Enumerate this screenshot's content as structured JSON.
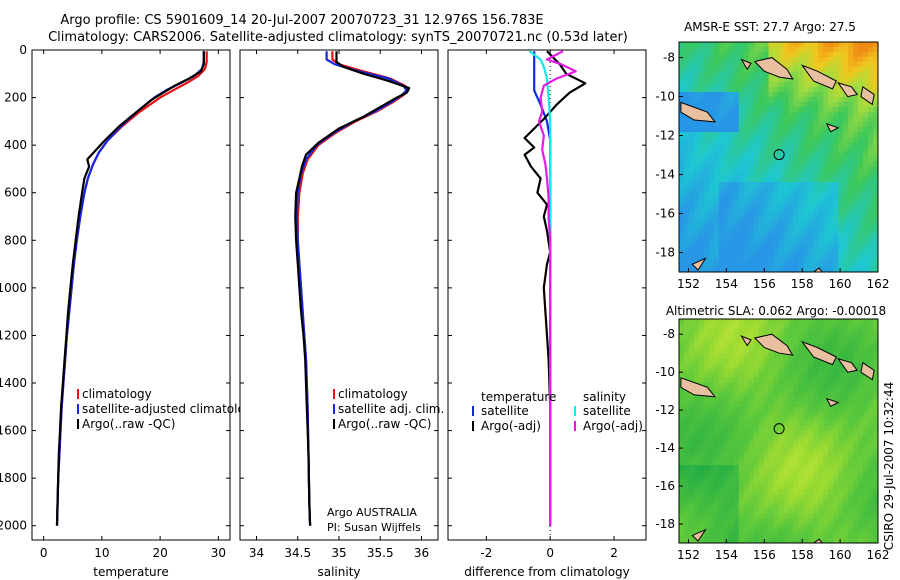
{
  "title_line1": "Argo profile: CS 5901609_14 20-Jul-2007 20070723_31 12.976S 156.783E",
  "title_line2": "Climatology: CARS2006. Satellite-adjusted climatology: synTS_20070721.nc (0.53d later)",
  "side_stamp": "CSIRO 29-Jul-2007 10:32:44",
  "credit_line1": "Argo AUSTRALIA",
  "credit_line2": "PI: Susan Wijffels",
  "colors": {
    "climatology": "#e81010",
    "satellite": "#1428e0",
    "argo": "#000000",
    "sat_cyan": "#19e6e6",
    "argo_magenta": "#e619e6"
  },
  "chart_data": [
    {
      "type": "line",
      "xlabel": "temperature",
      "xlim": [
        -2,
        32
      ],
      "ylim": [
        2060,
        0
      ],
      "xticks": [
        0,
        10,
        20,
        30
      ],
      "yticks": [
        0,
        200,
        400,
        600,
        800,
        1000,
        1200,
        1400,
        1600,
        1800,
        2000
      ],
      "legend": [
        "climatology",
        "satellite-adjusted climatology",
        "Argo(..raw -QC)"
      ],
      "series": [
        {
          "name": "climatology",
          "color": "#e81010",
          "points": [
            [
              28.0,
              5
            ],
            [
              28.0,
              50
            ],
            [
              27.7,
              80
            ],
            [
              26.5,
              110
            ],
            [
              24.5,
              140
            ],
            [
              22.2,
              170
            ],
            [
              20.0,
              200
            ],
            [
              16.5,
              260
            ],
            [
              13.5,
              320
            ],
            [
              11.0,
              380
            ],
            [
              9.5,
              430
            ],
            [
              8.5,
              480
            ],
            [
              7.6,
              540
            ],
            [
              7.0,
              600
            ],
            [
              6.3,
              700
            ],
            [
              5.7,
              800
            ],
            [
              5.2,
              900
            ],
            [
              4.8,
              1000
            ],
            [
              4.4,
              1100
            ],
            [
              4.0,
              1200
            ],
            [
              3.7,
              1300
            ],
            [
              3.4,
              1400
            ],
            [
              3.1,
              1500
            ],
            [
              2.9,
              1600
            ],
            [
              2.7,
              1700
            ],
            [
              2.5,
              1800
            ],
            [
              2.4,
              1900
            ],
            [
              2.3,
              1990
            ]
          ]
        },
        {
          "name": "satellite-adjusted climatology",
          "color": "#1428e0",
          "points": [
            [
              27.5,
              5
            ],
            [
              27.5,
              50
            ],
            [
              27.2,
              80
            ],
            [
              25.8,
              110
            ],
            [
              23.5,
              140
            ],
            [
              21.0,
              170
            ],
            [
              19.0,
              200
            ],
            [
              16.0,
              260
            ],
            [
              13.3,
              320
            ],
            [
              11.0,
              380
            ],
            [
              9.5,
              430
            ],
            [
              8.5,
              480
            ],
            [
              7.6,
              540
            ],
            [
              7.0,
              600
            ],
            [
              6.3,
              700
            ],
            [
              5.7,
              800
            ],
            [
              5.2,
              900
            ],
            [
              4.8,
              1000
            ],
            [
              4.4,
              1100
            ],
            [
              4.0,
              1200
            ],
            [
              3.7,
              1300
            ],
            [
              3.4,
              1400
            ],
            [
              3.1,
              1500
            ],
            [
              2.9,
              1600
            ],
            [
              2.7,
              1700
            ],
            [
              2.5,
              1800
            ],
            [
              2.4,
              1900
            ],
            [
              2.3,
              2000
            ]
          ]
        },
        {
          "name": "Argo(..raw -QC)",
          "color": "#000000",
          "points": [
            [
              27.5,
              5
            ],
            [
              27.5,
              60
            ],
            [
              27.0,
              90
            ],
            [
              25.0,
              120
            ],
            [
              22.5,
              150
            ],
            [
              20.5,
              180
            ],
            [
              18.5,
              210
            ],
            [
              16.0,
              260
            ],
            [
              13.0,
              320
            ],
            [
              10.5,
              380
            ],
            [
              9.0,
              420
            ],
            [
              7.5,
              460
            ],
            [
              7.8,
              490
            ],
            [
              7.0,
              540
            ],
            [
              6.6,
              600
            ],
            [
              6.0,
              700
            ],
            [
              5.5,
              800
            ],
            [
              5.0,
              900
            ],
            [
              4.6,
              1000
            ],
            [
              4.2,
              1100
            ],
            [
              3.9,
              1200
            ],
            [
              3.6,
              1300
            ],
            [
              3.3,
              1400
            ],
            [
              3.0,
              1500
            ],
            [
              2.8,
              1600
            ],
            [
              2.6,
              1700
            ],
            [
              2.5,
              1800
            ],
            [
              2.4,
              1900
            ],
            [
              2.3,
              2000
            ]
          ]
        }
      ]
    },
    {
      "type": "line",
      "xlabel": "salinity",
      "xlim": [
        33.8,
        36.2
      ],
      "ylim": [
        2060,
        0
      ],
      "xticks": [
        34,
        34.5,
        35,
        35.5,
        36
      ],
      "legend": [
        "climatology",
        "satellite adj. clim.",
        "Argo(..raw -QC)"
      ],
      "series": [
        {
          "name": "climatology",
          "color": "#e81010",
          "points": [
            [
              34.92,
              5
            ],
            [
              34.92,
              40
            ],
            [
              35.0,
              60
            ],
            [
              35.3,
              90
            ],
            [
              35.62,
              120
            ],
            [
              35.8,
              150
            ],
            [
              35.84,
              170
            ],
            [
              35.78,
              190
            ],
            [
              35.65,
              220
            ],
            [
              35.45,
              260
            ],
            [
              35.2,
              300
            ],
            [
              34.95,
              350
            ],
            [
              34.75,
              400
            ],
            [
              34.62,
              460
            ],
            [
              34.56,
              520
            ],
            [
              34.52,
              600
            ],
            [
              34.5,
              700
            ],
            [
              34.5,
              800
            ],
            [
              34.52,
              900
            ],
            [
              34.54,
              1000
            ],
            [
              34.56,
              1100
            ],
            [
              34.58,
              1200
            ],
            [
              34.6,
              1300
            ],
            [
              34.62,
              1500
            ],
            [
              34.63,
              1700
            ],
            [
              34.64,
              1900
            ],
            [
              34.65,
              2000
            ]
          ]
        },
        {
          "name": "satellite adj. clim.",
          "color": "#1428e0",
          "points": [
            [
              34.85,
              5
            ],
            [
              34.85,
              40
            ],
            [
              34.95,
              60
            ],
            [
              35.25,
              90
            ],
            [
              35.6,
              120
            ],
            [
              35.78,
              150
            ],
            [
              35.82,
              170
            ],
            [
              35.76,
              190
            ],
            [
              35.63,
              220
            ],
            [
              35.43,
              260
            ],
            [
              35.18,
              300
            ],
            [
              34.93,
              350
            ],
            [
              34.73,
              400
            ],
            [
              34.6,
              460
            ],
            [
              34.54,
              520
            ],
            [
              34.5,
              600
            ],
            [
              34.49,
              700
            ],
            [
              34.5,
              800
            ],
            [
              34.52,
              900
            ],
            [
              34.54,
              1000
            ],
            [
              34.56,
              1100
            ],
            [
              34.58,
              1200
            ],
            [
              34.6,
              1300
            ],
            [
              34.62,
              1500
            ],
            [
              34.63,
              1700
            ],
            [
              34.64,
              1900
            ],
            [
              34.65,
              2000
            ]
          ]
        },
        {
          "name": "Argo(..raw -QC)",
          "color": "#000000",
          "points": [
            [
              34.97,
              5
            ],
            [
              34.97,
              50
            ],
            [
              35.05,
              70
            ],
            [
              35.3,
              100
            ],
            [
              35.6,
              130
            ],
            [
              35.85,
              160
            ],
            [
              35.82,
              180
            ],
            [
              35.7,
              200
            ],
            [
              35.55,
              230
            ],
            [
              35.3,
              280
            ],
            [
              35.0,
              330
            ],
            [
              34.75,
              390
            ],
            [
              34.6,
              440
            ],
            [
              34.55,
              490
            ],
            [
              34.52,
              540
            ],
            [
              34.48,
              600
            ],
            [
              34.47,
              700
            ],
            [
              34.48,
              800
            ],
            [
              34.5,
              900
            ],
            [
              34.52,
              1000
            ],
            [
              34.54,
              1100
            ],
            [
              34.57,
              1200
            ],
            [
              34.59,
              1300
            ],
            [
              34.61,
              1500
            ],
            [
              34.63,
              1700
            ],
            [
              34.64,
              1900
            ],
            [
              34.65,
              2000
            ]
          ]
        }
      ]
    },
    {
      "type": "line",
      "xlabel": "difference from climatology",
      "xlim": [
        -3.2,
        3.0
      ],
      "ylim": [
        2060,
        0
      ],
      "xticks": [
        -2,
        0,
        2
      ],
      "legend": [
        "temperature",
        "satellite",
        "Argo(-adj)",
        "salinity",
        "satellite",
        "Argo(-adj)"
      ],
      "series": [
        {
          "name": "temperature satellite",
          "color": "#1428e0",
          "points": [
            [
              -0.5,
              5
            ],
            [
              -0.5,
              50
            ],
            [
              -0.5,
              110
            ],
            [
              -0.5,
              170
            ],
            [
              -0.3,
              230
            ],
            [
              -0.1,
              300
            ],
            [
              0.0,
              380
            ],
            [
              0.0,
              500
            ],
            [
              0.0,
              700
            ],
            [
              0.0,
              900
            ],
            [
              0.0,
              1200
            ],
            [
              0.0,
              1600
            ],
            [
              0.0,
              2000
            ]
          ]
        },
        {
          "name": "temperature Argo(-adj)",
          "color": "#000000",
          "points": [
            [
              -0.1,
              5
            ],
            [
              0.3,
              60
            ],
            [
              0.5,
              100
            ],
            [
              1.1,
              140
            ],
            [
              0.6,
              180
            ],
            [
              0.2,
              230
            ],
            [
              -0.2,
              290
            ],
            [
              -0.5,
              330
            ],
            [
              -0.8,
              370
            ],
            [
              -0.5,
              410
            ],
            [
              -0.8,
              440
            ],
            [
              -0.6,
              490
            ],
            [
              -0.3,
              540
            ],
            [
              -0.4,
              600
            ],
            [
              -0.1,
              650
            ],
            [
              -0.2,
              700
            ],
            [
              -0.1,
              760
            ],
            [
              0.0,
              850
            ],
            [
              -0.1,
              900
            ],
            [
              -0.2,
              1000
            ],
            [
              -0.15,
              1100
            ],
            [
              -0.1,
              1200
            ],
            [
              -0.05,
              1300
            ],
            [
              0.0,
              1500
            ],
            [
              0.0,
              2000
            ]
          ]
        },
        {
          "name": "salinity satellite",
          "color": "#19e6e6",
          "points": [
            [
              -0.65,
              5
            ],
            [
              -0.3,
              40
            ],
            [
              -0.2,
              70
            ],
            [
              -0.1,
              120
            ],
            [
              -0.05,
              200
            ],
            [
              0.0,
              300
            ],
            [
              0.0,
              500
            ],
            [
              0.0,
              800
            ],
            [
              0.0,
              1200
            ],
            [
              0.0,
              1600
            ],
            [
              0.0,
              2000
            ]
          ]
        },
        {
          "name": "salinity Argo(-adj)",
          "color": "#e619e6",
          "points": [
            [
              0.4,
              5
            ],
            [
              -0.1,
              40
            ],
            [
              0.35,
              60
            ],
            [
              0.8,
              90
            ],
            [
              0.2,
              120
            ],
            [
              -0.2,
              150
            ],
            [
              -0.3,
              200
            ],
            [
              -0.25,
              260
            ],
            [
              -0.35,
              300
            ],
            [
              -0.2,
              360
            ],
            [
              -0.25,
              420
            ],
            [
              -0.15,
              480
            ],
            [
              -0.1,
              540
            ],
            [
              -0.05,
              620
            ],
            [
              -0.05,
              700
            ],
            [
              0.0,
              800
            ],
            [
              0.0,
              1000
            ],
            [
              0.0,
              2000
            ]
          ]
        }
      ]
    },
    {
      "type": "heatmap",
      "title": "AMSR-E SST: 27.7  Argo: 27.5",
      "xlim": [
        151.5,
        162
      ],
      "ylim": [
        -19,
        -7.2
      ],
      "xticks": [
        152,
        154,
        156,
        158,
        160,
        162
      ],
      "yticks": [
        -8,
        -10,
        -12,
        -14,
        -16,
        -18
      ],
      "argo_position": [
        156.783,
        -12.976
      ]
    },
    {
      "type": "heatmap",
      "title": "Altimetric SLA: 0.062  Argo: -0.00018",
      "xlim": [
        151.5,
        162
      ],
      "ylim": [
        -19,
        -7.2
      ],
      "xticks": [
        152,
        154,
        156,
        158,
        160,
        162
      ],
      "yticks": [
        -8,
        -10,
        -12,
        -14,
        -16,
        -18
      ],
      "argo_position": [
        156.783,
        -12.976
      ]
    }
  ]
}
